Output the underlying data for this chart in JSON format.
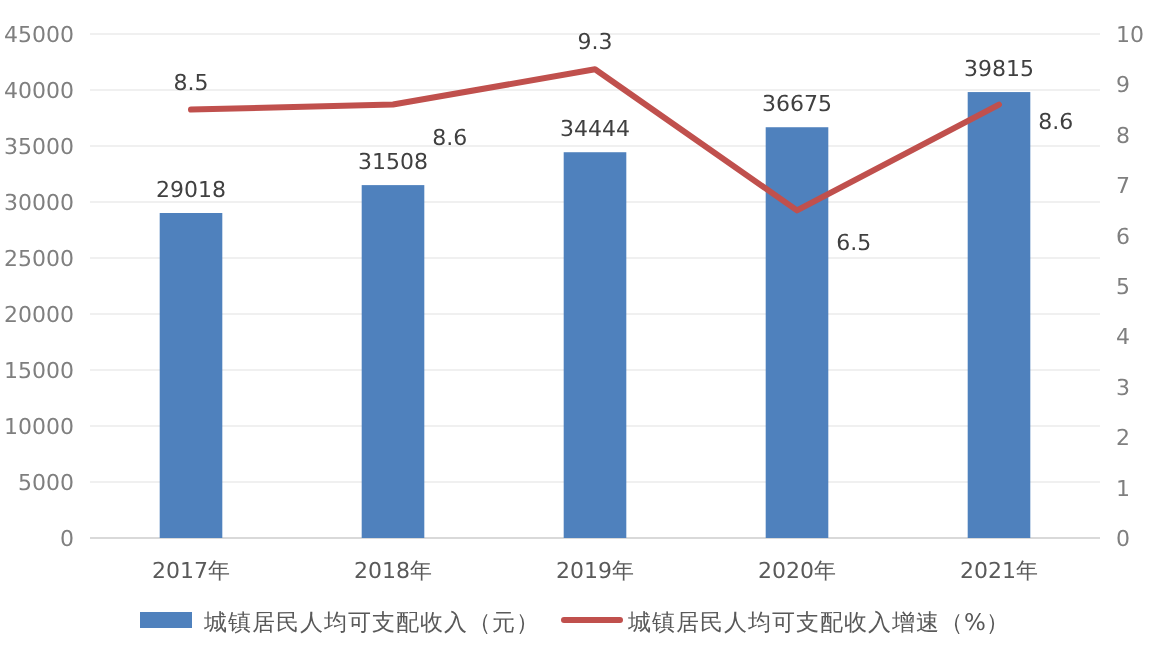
{
  "chart_data": {
    "type": "bar",
    "categories": [
      "2017年",
      "2018年",
      "2019年",
      "2020年",
      "2021年"
    ],
    "series": [
      {
        "name": "城镇居民人均可支配收入（元）",
        "color": "#4f81bd",
        "values": [
          29018,
          31508,
          34444,
          36675,
          39815
        ]
      },
      {
        "name": "城镇居民人均可支配收入增速（%）",
        "type": "line",
        "axis": "y2",
        "color": "#c0504d",
        "values": [
          8.5,
          8.6,
          9.3,
          6.5,
          8.6
        ]
      }
    ],
    "ylim": [
      0,
      45000
    ],
    "yticks": [
      0,
      5000,
      10000,
      15000,
      20000,
      25000,
      30000,
      35000,
      40000,
      45000
    ],
    "y2lim": [
      0,
      10
    ],
    "y2ticks": [
      0,
      1,
      2,
      3,
      4,
      5,
      6,
      7,
      8,
      9,
      10
    ],
    "data_labels": true,
    "grid": "y",
    "legend": "bottom"
  }
}
